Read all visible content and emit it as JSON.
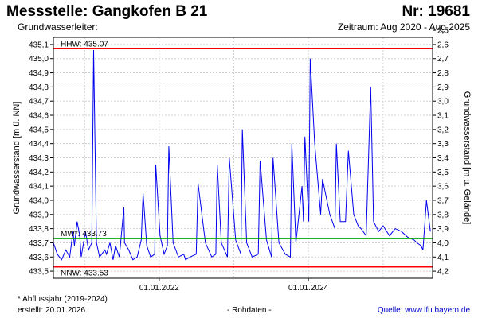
{
  "header": {
    "title": "Messstelle: Gangkofen B 21",
    "number": "Nr: 19681",
    "aquifer": "Grundwasserleiter:",
    "period": "Zeitraum: Aug 2020 - Aug 2025"
  },
  "footer": {
    "note": "* Abflussjahr (2019-2024)",
    "created": "erstellt:  20.01.2026",
    "raw": "- Rohdaten -",
    "source": "Quelle: www.lfu.bayern.de"
  },
  "colors": {
    "series": "#0000ee",
    "hhw": "#ff0000",
    "nnw": "#ff0000",
    "mw": "#00aa00",
    "grid": "#d0d0d0",
    "frame": "#000000"
  },
  "chart_data": {
    "type": "line",
    "ylabel": "Grundwasserstand [m ü. NN]",
    "y2label": "Grundwasserstand [m u. Gelände]",
    "ylim": [
      433.45,
      435.15
    ],
    "y2lim": [
      4.25,
      2.55
    ],
    "yticks": [
      "435,1",
      "435,0",
      "434,9",
      "434,8",
      "434,7",
      "434,6",
      "434,5",
      "434,4",
      "434,3",
      "434,2",
      "434,1",
      "434,0",
      "433,9",
      "433,8",
      "433,7",
      "433,6",
      "433,5"
    ],
    "y2ticks": [
      "2,5",
      "2,6",
      "2,7",
      "2,8",
      "2,9",
      "3,0",
      "3,1",
      "3,2",
      "3,3",
      "3,4",
      "3,5",
      "3,6",
      "3,7",
      "3,8",
      "3,9",
      "4,0",
      "4,1",
      "4,2"
    ],
    "xlim": [
      "2020-08-01",
      "2025-08-31"
    ],
    "xticks": [
      "01.01.2022",
      "01.01.2024"
    ],
    "grid": true,
    "reference_lines": [
      {
        "label": "HHW: 435.07",
        "value": 435.07
      },
      {
        "label": "MW*: 433.73",
        "value": 433.73
      },
      {
        "label": "NNW: 433.53",
        "value": 433.53
      }
    ],
    "series": [
      {
        "x": [
          "2020-08-01",
          "2020-08-20",
          "2020-09-10",
          "2020-10-01",
          "2020-10-20",
          "2020-11-05",
          "2020-11-12",
          "2020-11-25",
          "2020-12-08",
          "2020-12-15",
          "2021-01-05",
          "2021-01-20",
          "2021-02-05",
          "2021-02-14",
          "2021-02-28",
          "2021-03-15",
          "2021-04-10",
          "2021-04-18",
          "2021-05-05",
          "2021-05-20",
          "2021-06-01",
          "2021-06-20",
          "2021-07-12",
          "2021-07-15",
          "2021-08-05",
          "2021-08-25",
          "2021-09-15",
          "2021-10-05",
          "2021-10-14",
          "2021-11-01",
          "2021-11-20",
          "2021-12-10",
          "2021-12-15",
          "2022-01-05",
          "2022-01-25",
          "2022-02-10",
          "2022-02-17",
          "2022-03-10",
          "2022-04-05",
          "2022-05-01",
          "2022-05-10",
          "2022-06-01",
          "2022-07-01",
          "2022-07-10",
          "2022-08-15",
          "2022-09-15",
          "2022-10-05",
          "2022-10-12",
          "2022-11-01",
          "2022-12-01",
          "2022-12-10",
          "2023-01-10",
          "2023-02-05",
          "2023-02-12",
          "2023-03-05",
          "2023-04-01",
          "2023-05-01",
          "2023-05-10",
          "2023-06-10",
          "2023-07-05",
          "2023-07-12",
          "2023-08-10",
          "2023-09-10",
          "2023-10-05",
          "2023-10-12",
          "2023-11-01",
          "2023-12-01",
          "2023-12-08",
          "2023-12-15",
          "2024-01-03",
          "2024-01-10",
          "2024-02-01",
          "2024-03-01",
          "2024-03-10",
          "2024-04-15",
          "2024-05-10",
          "2024-05-17",
          "2024-06-05",
          "2024-07-01",
          "2024-07-15",
          "2024-08-10",
          "2024-09-01",
          "2024-09-15",
          "2024-10-10",
          "2024-11-01",
          "2024-11-15",
          "2024-12-10",
          "2025-01-01",
          "2025-02-01",
          "2025-03-01",
          "2025-04-01",
          "2025-05-01",
          "2025-06-01",
          "2025-06-15",
          "2025-07-05",
          "2025-07-15",
          "2025-08-01",
          "2025-08-20"
        ],
        "values": [
          433.7,
          433.62,
          433.58,
          433.65,
          433.6,
          433.78,
          433.68,
          433.85,
          433.75,
          433.6,
          433.78,
          433.65,
          433.7,
          435.06,
          433.7,
          433.6,
          433.65,
          433.62,
          433.7,
          433.58,
          433.68,
          433.6,
          433.95,
          433.7,
          433.65,
          433.58,
          433.6,
          433.72,
          434.05,
          433.68,
          433.6,
          433.62,
          434.25,
          433.75,
          433.62,
          433.68,
          434.38,
          433.7,
          433.6,
          433.62,
          433.58,
          433.6,
          433.62,
          434.12,
          433.7,
          433.6,
          433.62,
          434.25,
          433.7,
          433.6,
          434.3,
          433.72,
          433.62,
          434.5,
          433.7,
          433.6,
          433.62,
          434.28,
          433.72,
          433.6,
          434.3,
          433.7,
          433.62,
          433.6,
          434.4,
          433.7,
          434.1,
          433.85,
          434.45,
          433.85,
          435.0,
          434.4,
          433.9,
          434.15,
          433.9,
          433.8,
          434.4,
          433.85,
          433.85,
          434.35,
          433.9,
          433.82,
          433.8,
          433.75,
          434.8,
          433.85,
          433.78,
          433.82,
          433.75,
          433.8,
          433.78,
          433.74,
          433.72,
          433.7,
          433.68,
          433.65,
          434.0,
          433.78
        ]
      }
    ]
  }
}
